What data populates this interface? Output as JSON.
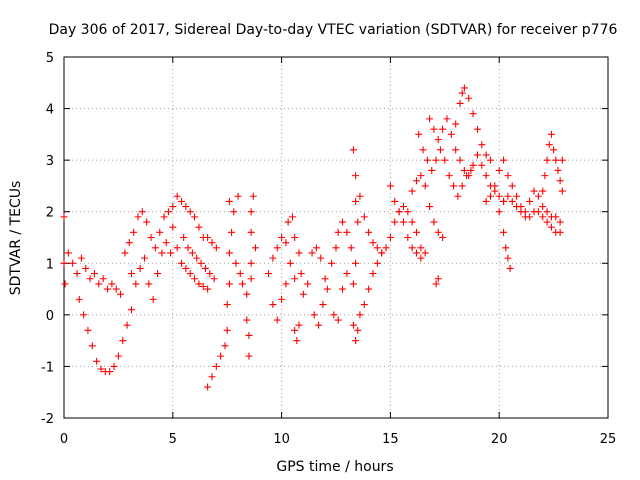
{
  "chart_data": {
    "type": "scatter",
    "title": "Day 306 of 2017, Sidereal Day-to-day VTEC variation (SDTVAR) for receiver p776",
    "xlabel": "GPS time / hours",
    "ylabel": "SDTVAR / TECUs",
    "xlim": [
      0,
      25
    ],
    "ylim": [
      -2,
      5
    ],
    "x_ticks": [
      "0",
      "5",
      "10",
      "15",
      "20",
      "25"
    ],
    "y_ticks": [
      "-2",
      "-1",
      "0",
      "1",
      "2",
      "3",
      "4",
      "5"
    ],
    "grid": true,
    "marker": "+",
    "marker_color": "#ff0000",
    "series": [
      {
        "name": "SDTVAR",
        "approximate_points": [
          [
            0.0,
            1.9
          ],
          [
            0.0,
            1.0
          ],
          [
            0.05,
            0.6
          ],
          [
            0.2,
            1.2
          ],
          [
            0.4,
            1.0
          ],
          [
            0.6,
            0.8
          ],
          [
            0.8,
            1.1
          ],
          [
            1.0,
            0.9
          ],
          [
            1.2,
            0.7
          ],
          [
            1.4,
            0.8
          ],
          [
            1.6,
            0.6
          ],
          [
            1.8,
            0.7
          ],
          [
            2.0,
            0.5
          ],
          [
            2.2,
            0.6
          ],
          [
            2.4,
            0.5
          ],
          [
            2.6,
            0.4
          ],
          [
            0.7,
            0.3
          ],
          [
            0.9,
            0.0
          ],
          [
            1.1,
            -0.3
          ],
          [
            1.3,
            -0.6
          ],
          [
            1.5,
            -0.9
          ],
          [
            1.7,
            -1.05
          ],
          [
            1.9,
            -1.1
          ],
          [
            2.1,
            -1.1
          ],
          [
            2.3,
            -1.0
          ],
          [
            2.5,
            -0.8
          ],
          [
            2.7,
            -0.5
          ],
          [
            2.9,
            -0.2
          ],
          [
            3.1,
            0.1
          ],
          [
            2.8,
            1.2
          ],
          [
            3.0,
            1.4
          ],
          [
            3.2,
            1.6
          ],
          [
            3.4,
            1.9
          ],
          [
            3.6,
            2.0
          ],
          [
            3.8,
            1.8
          ],
          [
            4.0,
            1.5
          ],
          [
            4.2,
            1.3
          ],
          [
            4.4,
            1.6
          ],
          [
            4.6,
            1.9
          ],
          [
            4.8,
            2.0
          ],
          [
            5.0,
            1.7
          ],
          [
            5.2,
            1.3
          ],
          [
            5.4,
            1.0
          ],
          [
            5.6,
            0.9
          ],
          [
            5.8,
            0.8
          ],
          [
            6.0,
            0.7
          ],
          [
            6.2,
            0.6
          ],
          [
            6.4,
            0.55
          ],
          [
            6.6,
            0.5
          ],
          [
            3.1,
            0.8
          ],
          [
            3.3,
            0.6
          ],
          [
            3.5,
            0.9
          ],
          [
            3.7,
            1.1
          ],
          [
            3.9,
            0.6
          ],
          [
            4.1,
            0.3
          ],
          [
            4.3,
            0.8
          ],
          [
            4.5,
            1.2
          ],
          [
            4.7,
            1.4
          ],
          [
            4.9,
            1.2
          ],
          [
            5.0,
            2.1
          ],
          [
            5.2,
            2.3
          ],
          [
            5.4,
            2.2
          ],
          [
            5.6,
            2.1
          ],
          [
            5.8,
            2.0
          ],
          [
            6.0,
            1.9
          ],
          [
            6.2,
            1.7
          ],
          [
            6.4,
            1.5
          ],
          [
            6.6,
            1.5
          ],
          [
            6.8,
            1.4
          ],
          [
            7.0,
            1.3
          ],
          [
            5.5,
            1.5
          ],
          [
            5.7,
            1.3
          ],
          [
            5.9,
            1.2
          ],
          [
            6.1,
            1.1
          ],
          [
            6.3,
            1.0
          ],
          [
            6.5,
            0.9
          ],
          [
            6.7,
            0.8
          ],
          [
            6.9,
            0.7
          ],
          [
            6.6,
            -1.4
          ],
          [
            6.8,
            -1.2
          ],
          [
            7.0,
            -1.0
          ],
          [
            7.2,
            -0.8
          ],
          [
            7.4,
            -0.6
          ],
          [
            7.5,
            -0.3
          ],
          [
            7.5,
            0.2
          ],
          [
            7.6,
            0.6
          ],
          [
            7.6,
            1.2
          ],
          [
            7.7,
            1.6
          ],
          [
            7.6,
            2.2
          ],
          [
            7.8,
            2.0
          ],
          [
            8.0,
            2.3
          ],
          [
            7.9,
            1.0
          ],
          [
            8.1,
            0.8
          ],
          [
            8.2,
            0.6
          ],
          [
            8.4,
            0.4
          ],
          [
            8.4,
            -0.1
          ],
          [
            8.5,
            -0.4
          ],
          [
            8.5,
            -0.8
          ],
          [
            8.6,
            0.7
          ],
          [
            8.6,
            1.0
          ],
          [
            8.6,
            1.6
          ],
          [
            8.6,
            2.0
          ],
          [
            8.7,
            2.3
          ],
          [
            8.8,
            1.3
          ],
          [
            9.4,
            0.8
          ],
          [
            9.6,
            1.1
          ],
          [
            9.8,
            1.3
          ],
          [
            10.0,
            1.5
          ],
          [
            10.2,
            1.4
          ],
          [
            10.4,
            1.0
          ],
          [
            10.6,
            0.7
          ],
          [
            9.6,
            0.2
          ],
          [
            9.8,
            -0.1
          ],
          [
            10.0,
            0.3
          ],
          [
            10.2,
            0.6
          ],
          [
            10.3,
            1.8
          ],
          [
            10.5,
            1.9
          ],
          [
            10.6,
            1.5
          ],
          [
            10.8,
            1.2
          ],
          [
            10.9,
            0.8
          ],
          [
            10.6,
            -0.3
          ],
          [
            10.7,
            -0.5
          ],
          [
            10.8,
            -0.2
          ],
          [
            11.0,
            0.4
          ],
          [
            11.2,
            0.6
          ],
          [
            11.4,
            1.2
          ],
          [
            11.6,
            1.3
          ],
          [
            11.8,
            1.1
          ],
          [
            12.0,
            0.7
          ],
          [
            11.5,
            0.0
          ],
          [
            11.7,
            -0.2
          ],
          [
            11.9,
            0.2
          ],
          [
            12.1,
            0.5
          ],
          [
            12.3,
            1.0
          ],
          [
            12.5,
            1.3
          ],
          [
            12.6,
            1.6
          ],
          [
            12.8,
            1.8
          ],
          [
            13.0,
            1.6
          ],
          [
            13.2,
            1.3
          ],
          [
            12.4,
            0.0
          ],
          [
            12.6,
            -0.1
          ],
          [
            12.8,
            0.5
          ],
          [
            13.0,
            0.8
          ],
          [
            13.3,
            3.2
          ],
          [
            13.4,
            2.7
          ],
          [
            13.4,
            2.2
          ],
          [
            13.5,
            1.8
          ],
          [
            13.4,
            1.0
          ],
          [
            13.3,
            0.6
          ],
          [
            13.3,
            -0.2
          ],
          [
            13.4,
            -0.5
          ],
          [
            13.5,
            -0.3
          ],
          [
            13.6,
            0.0
          ],
          [
            13.8,
            0.2
          ],
          [
            14.0,
            0.5
          ],
          [
            14.2,
            0.8
          ],
          [
            14.4,
            1.0
          ],
          [
            14.6,
            1.2
          ],
          [
            13.6,
            2.3
          ],
          [
            13.8,
            1.9
          ],
          [
            14.0,
            1.6
          ],
          [
            14.2,
            1.4
          ],
          [
            14.4,
            1.3
          ],
          [
            14.6,
            1.2
          ],
          [
            14.8,
            1.3
          ],
          [
            15.0,
            1.5
          ],
          [
            15.2,
            1.8
          ],
          [
            15.4,
            2.0
          ],
          [
            15.6,
            2.1
          ],
          [
            15.8,
            2.0
          ],
          [
            16.0,
            1.8
          ],
          [
            16.2,
            1.6
          ],
          [
            16.4,
            1.3
          ],
          [
            16.6,
            1.2
          ],
          [
            15.0,
            2.5
          ],
          [
            15.2,
            2.2
          ],
          [
            15.4,
            2.0
          ],
          [
            15.6,
            1.8
          ],
          [
            15.8,
            1.5
          ],
          [
            16.0,
            1.3
          ],
          [
            16.2,
            1.2
          ],
          [
            16.4,
            1.1
          ],
          [
            16.0,
            2.4
          ],
          [
            16.2,
            2.6
          ],
          [
            16.4,
            2.7
          ],
          [
            16.6,
            2.5
          ],
          [
            16.8,
            2.1
          ],
          [
            17.0,
            1.8
          ],
          [
            17.2,
            1.6
          ],
          [
            17.4,
            1.5
          ],
          [
            17.1,
            0.6
          ],
          [
            17.2,
            0.7
          ],
          [
            16.3,
            3.5
          ],
          [
            16.5,
            3.2
          ],
          [
            16.7,
            3.0
          ],
          [
            16.9,
            2.8
          ],
          [
            17.1,
            3.0
          ],
          [
            17.3,
            3.2
          ],
          [
            17.5,
            3.0
          ],
          [
            17.7,
            2.7
          ],
          [
            17.9,
            2.5
          ],
          [
            18.1,
            2.3
          ],
          [
            18.3,
            2.5
          ],
          [
            18.5,
            2.7
          ],
          [
            18.7,
            2.8
          ],
          [
            16.8,
            3.8
          ],
          [
            17.0,
            3.6
          ],
          [
            17.2,
            3.4
          ],
          [
            17.4,
            3.6
          ],
          [
            17.6,
            3.8
          ],
          [
            17.8,
            3.5
          ],
          [
            18.0,
            3.7
          ],
          [
            18.2,
            4.1
          ],
          [
            18.3,
            4.3
          ],
          [
            18.4,
            4.4
          ],
          [
            18.6,
            4.2
          ],
          [
            18.8,
            3.9
          ],
          [
            19.0,
            3.6
          ],
          [
            19.2,
            3.3
          ],
          [
            19.4,
            3.1
          ],
          [
            19.6,
            3.0
          ],
          [
            18.0,
            3.2
          ],
          [
            18.2,
            3.0
          ],
          [
            18.4,
            2.8
          ],
          [
            18.6,
            2.7
          ],
          [
            18.8,
            2.9
          ],
          [
            19.0,
            3.1
          ],
          [
            19.2,
            2.9
          ],
          [
            19.4,
            2.7
          ],
          [
            19.6,
            2.5
          ],
          [
            19.8,
            2.4
          ],
          [
            20.0,
            2.3
          ],
          [
            20.2,
            2.2
          ],
          [
            19.4,
            2.2
          ],
          [
            19.6,
            2.3
          ],
          [
            19.8,
            2.5
          ],
          [
            20.0,
            2.8
          ],
          [
            20.2,
            3.0
          ],
          [
            20.4,
            2.7
          ],
          [
            20.6,
            2.5
          ],
          [
            20.8,
            2.3
          ],
          [
            21.0,
            2.1
          ],
          [
            21.2,
            2.0
          ],
          [
            21.4,
            2.2
          ],
          [
            21.6,
            2.4
          ],
          [
            21.8,
            2.3
          ],
          [
            22.0,
            2.1
          ],
          [
            22.2,
            2.0
          ],
          [
            22.4,
            1.9
          ],
          [
            20.2,
            1.6
          ],
          [
            20.3,
            1.3
          ],
          [
            20.4,
            1.1
          ],
          [
            20.5,
            0.9
          ],
          [
            20.0,
            2.0
          ],
          [
            20.2,
            2.2
          ],
          [
            20.4,
            2.3
          ],
          [
            20.6,
            2.2
          ],
          [
            20.8,
            2.1
          ],
          [
            21.0,
            2.0
          ],
          [
            21.2,
            1.9
          ],
          [
            21.4,
            1.9
          ],
          [
            21.6,
            2.0
          ],
          [
            21.8,
            2.0
          ],
          [
            22.0,
            1.9
          ],
          [
            22.2,
            1.8
          ],
          [
            22.4,
            1.7
          ],
          [
            22.6,
            1.6
          ],
          [
            22.8,
            1.6
          ],
          [
            22.0,
            2.4
          ],
          [
            22.1,
            2.7
          ],
          [
            22.2,
            3.0
          ],
          [
            22.3,
            3.3
          ],
          [
            22.4,
            3.5
          ],
          [
            22.5,
            3.2
          ],
          [
            22.6,
            3.0
          ],
          [
            22.7,
            2.8
          ],
          [
            22.8,
            2.6
          ],
          [
            22.9,
            2.4
          ],
          [
            22.6,
            1.9
          ],
          [
            22.8,
            1.8
          ],
          [
            22.9,
            3.0
          ]
        ]
      }
    ]
  }
}
